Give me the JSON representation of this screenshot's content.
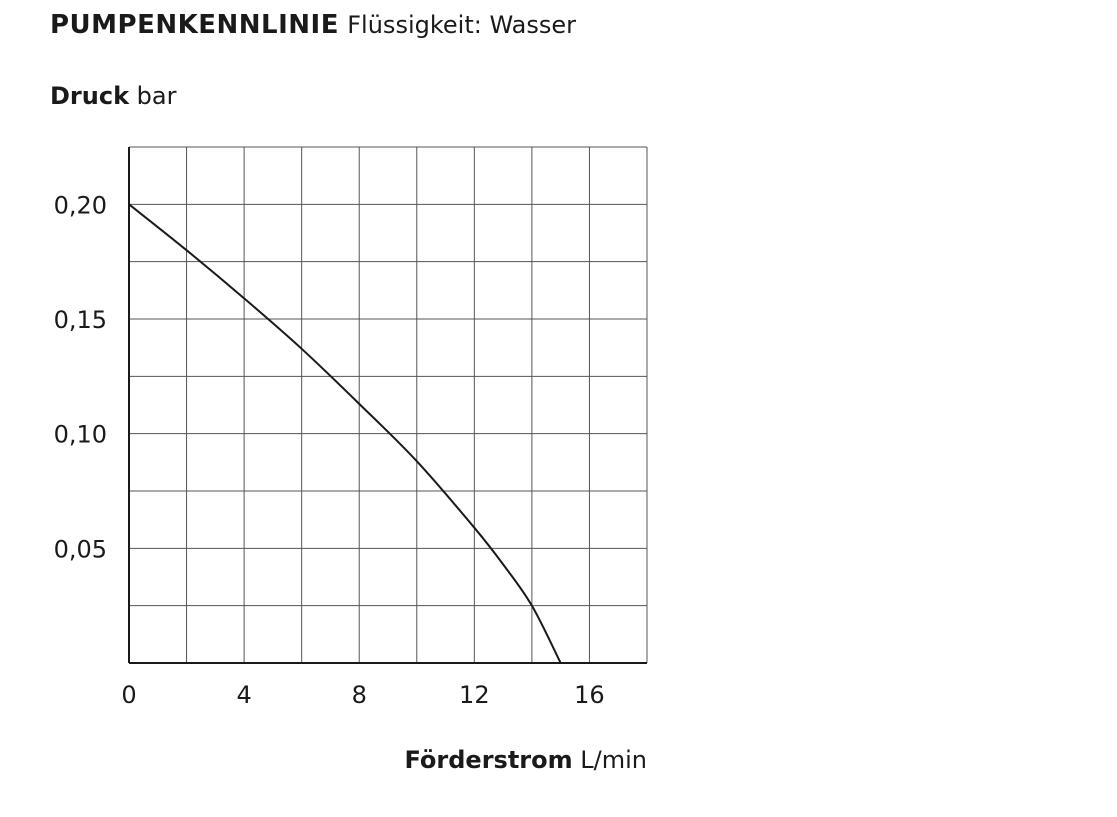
{
  "chart_data": {
    "type": "line",
    "title": "PUMPENKENNLINIE",
    "subtitle": "Flüssigkeit: Wasser",
    "ylabel": "Druck",
    "yunit": "bar",
    "xlabel": "Förderstrom",
    "xunit": "L/min",
    "xlim": [
      0,
      18
    ],
    "ylim": [
      0,
      0.225
    ],
    "xticks": [
      0,
      4,
      8,
      12,
      16
    ],
    "xtick_labels": [
      "0",
      "4",
      "8",
      "12",
      "16"
    ],
    "yticks": [
      0.05,
      0.1,
      0.15,
      0.2
    ],
    "ytick_labels": [
      "0,05",
      "0,10",
      "0,15",
      "0,20"
    ],
    "grid": true,
    "series": [
      {
        "x": [
          0,
          2,
          4,
          6,
          8,
          10,
          12,
          13,
          14,
          15
        ],
        "y": [
          0.2,
          0.18,
          0.159,
          0.137,
          0.113,
          0.088,
          0.059,
          0.043,
          0.025,
          0.0
        ]
      }
    ],
    "colors": {
      "line": "#1a1a1a",
      "grid": "#555555",
      "axis": "#1a1a1a"
    }
  }
}
